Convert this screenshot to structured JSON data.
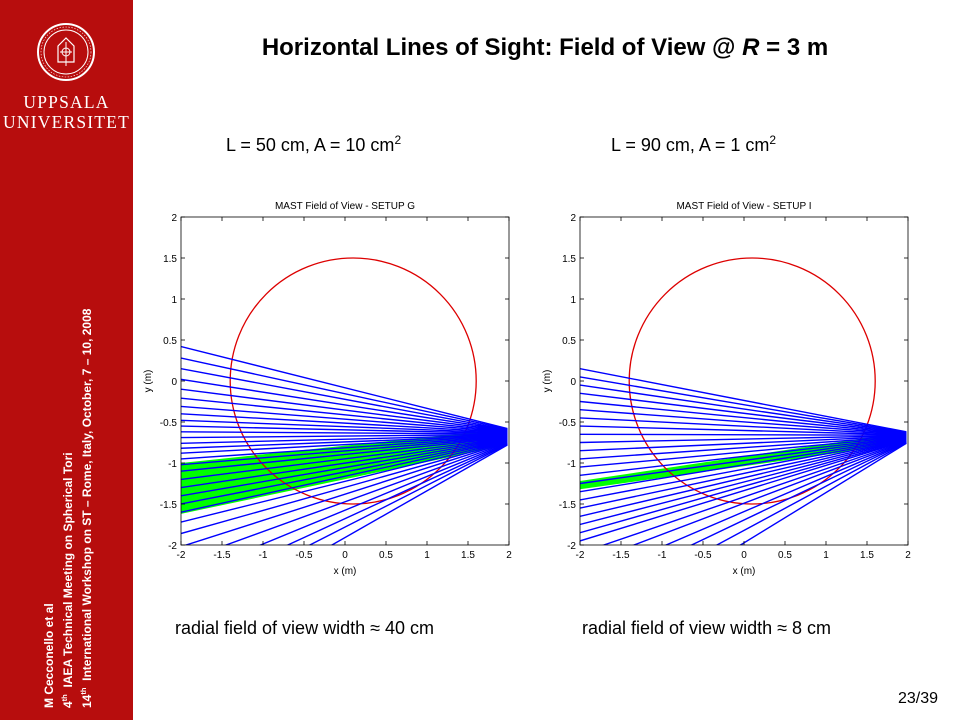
{
  "sidebar": {
    "university_line1": "UPPSALA",
    "university_line2": "UNIVERSITET",
    "author": "M Cecconello et al",
    "meeting_sup": "th",
    "meeting_num": "4",
    "meeting": "IAEA Technical Meeting on Spherical Tori",
    "workshop_num": "14",
    "workshop_sup": "th",
    "workshop": "International Workshop on ST – Rome, Italy, October, 7 – 10, 2008",
    "colors": {
      "background": "#b70d0d",
      "text": "#ffffff"
    }
  },
  "slide": {
    "title_prefix": "Horizontal Lines of Sight: Field of View @ ",
    "title_var": "R",
    "title_suffix": " = 3 m",
    "left_subtitle_main": "L = 50 cm, A = 10 cm",
    "left_subtitle_sup": "2",
    "right_subtitle_main": "L = 90 cm, A = 1 cm",
    "right_subtitle_sup": "2",
    "left_caption": "radial field of view width ≈ 40 cm",
    "right_caption": "radial field of view width ≈ 8 cm",
    "page_number": "23/39"
  },
  "chart_data": [
    {
      "type": "line",
      "title": "MAST Field of View - SETUP G",
      "xlabel": "x (m)",
      "ylabel": "y (m)",
      "xlim": [
        -2,
        2
      ],
      "ylim": [
        -2,
        2
      ],
      "xticks": [
        "-2",
        "-1.5",
        "-1",
        "-0.5",
        "0",
        "0.5",
        "1",
        "1.5",
        "2"
      ],
      "yticks": [
        "2",
        "1.5",
        "1",
        "0.5",
        "0",
        "-0.5",
        "-1",
        "-1.5",
        "-2"
      ],
      "circle": {
        "center": [
          0.1,
          0.0
        ],
        "radius": 1.5,
        "color": "#dd0000"
      },
      "sightlines": {
        "color": "#0000ff",
        "origin_top": [
          1.98,
          -0.58
        ],
        "origin_bottom": [
          1.98,
          -0.78
        ],
        "end_x": -2.0,
        "end_y": [
          0.42,
          0.28,
          0.15,
          0.02,
          -0.1,
          -0.21,
          -0.31,
          -0.4,
          -0.48,
          -0.55,
          -0.62,
          -0.69,
          -0.76,
          -0.82,
          -0.88,
          -0.95,
          -1.02,
          -1.1,
          -1.2,
          -1.3,
          -1.4,
          -1.5,
          -1.6,
          -1.72,
          -1.86,
          -2.02,
          -2.2,
          -2.4,
          -2.6,
          -2.8,
          -3.05
        ]
      },
      "highlight": {
        "color": "#00ff00",
        "end_y": [
          -1.0,
          -1.62
        ]
      }
    },
    {
      "type": "line",
      "title": "MAST Field of View - SETUP I",
      "xlabel": "x (m)",
      "ylabel": "y (m)",
      "xlim": [
        -2,
        2
      ],
      "ylim": [
        -2,
        2
      ],
      "xticks": [
        "-2",
        "-1.5",
        "-1",
        "-0.5",
        "0",
        "0.5",
        "1",
        "1.5",
        "2"
      ],
      "yticks": [
        "2",
        "1.5",
        "1",
        "0.5",
        "0",
        "-0.5",
        "-1",
        "-1.5",
        "-2"
      ],
      "circle": {
        "center": [
          0.1,
          0.0
        ],
        "radius": 1.5,
        "color": "#dd0000"
      },
      "sightlines": {
        "color": "#0000ff",
        "origin_top": [
          1.98,
          -0.62
        ],
        "origin_bottom": [
          1.98,
          -0.76
        ],
        "end_x": -2.0,
        "end_y": [
          0.15,
          0.05,
          -0.05,
          -0.15,
          -0.25,
          -0.35,
          -0.45,
          -0.55,
          -0.65,
          -0.75,
          -0.85,
          -0.95,
          -1.05,
          -1.15,
          -1.25,
          -1.35,
          -1.45,
          -1.55,
          -1.65,
          -1.75,
          -1.85,
          -1.95,
          -2.1,
          -2.25,
          -2.45,
          -2.65,
          -2.9,
          -3.2
        ]
      },
      "highlight": {
        "color": "#00ff00",
        "end_y": [
          -1.22,
          -1.32
        ]
      }
    }
  ]
}
